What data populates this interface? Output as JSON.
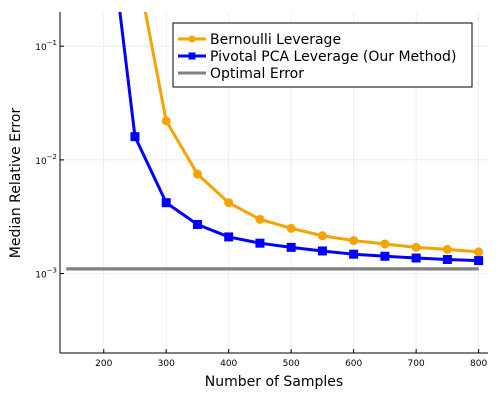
{
  "chart_data": {
    "type": "line",
    "xlabel": "Number of Samples",
    "ylabel": "Median Relative Error",
    "xlim": [
      130,
      815
    ],
    "ylim": [
      0.0002,
      0.2
    ],
    "yscale": "log",
    "x_ticks": [
      200,
      300,
      400,
      500,
      600,
      700,
      800
    ],
    "x_tick_labels": [
      "200",
      "300",
      "400",
      "500",
      "600",
      "700",
      "800"
    ],
    "y_ticks": [
      0.001,
      0.01,
      0.1
    ],
    "y_tick_labels": [
      {
        "base": "10",
        "exp": "−3"
      },
      {
        "base": "10",
        "exp": "−2"
      },
      {
        "base": "10",
        "exp": "−1"
      }
    ],
    "grid": true,
    "legend_position": "top-right",
    "series": [
      {
        "name": "Bernoulli Leverage",
        "color": "#f5a300",
        "marker": "circle",
        "x": [
          250,
          300,
          350,
          400,
          450,
          500,
          550,
          600,
          650,
          700,
          750,
          800
        ],
        "y": [
          0.6,
          0.022,
          0.0075,
          0.0042,
          0.003,
          0.0025,
          0.00215,
          0.00195,
          0.00182,
          0.0017,
          0.00163,
          0.00155
        ]
      },
      {
        "name": "Pivotal PCA Leverage (Our Method)",
        "color": "#0000ff",
        "marker": "square",
        "x": [
          200,
          250,
          300,
          350,
          400,
          450,
          500,
          550,
          600,
          650,
          700,
          750,
          800
        ],
        "y": [
          3.0,
          0.016,
          0.0042,
          0.0027,
          0.0021,
          0.00185,
          0.0017,
          0.00158,
          0.00148,
          0.00142,
          0.00137,
          0.00133,
          0.0013
        ]
      },
      {
        "name": "Optimal Error",
        "color": "#808080",
        "marker": "none",
        "x": [
          140,
          800
        ],
        "y": [
          0.0011,
          0.0011
        ]
      }
    ]
  }
}
